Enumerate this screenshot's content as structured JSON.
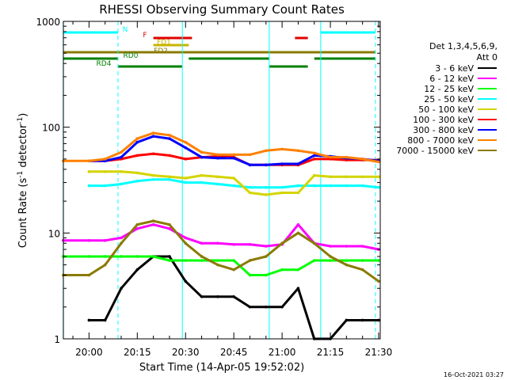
{
  "chart_data": {
    "type": "line",
    "title": "RHESSI Observing Summary Count Rates",
    "xlabel": "Start Time (14-Apr-05 19:52:02)",
    "ylabel_main": "Count Rate (s",
    "ylabel_sup1": "-1",
    "ylabel_mid": " detector",
    "ylabel_sup2": "-1",
    "ylabel_end": ")",
    "yscale": "log",
    "xlim": [
      "19:52:02",
      "21:30:30"
    ],
    "ylim": [
      1,
      1000
    ],
    "x_ticks": [
      "20:00",
      "20:15",
      "20:30",
      "20:45",
      "21:00",
      "21:15",
      "21:30"
    ],
    "y_ticks": [
      {
        "value": 1,
        "label": "1"
      },
      {
        "value": 10,
        "label": "10"
      },
      {
        "value": 100,
        "label": "100"
      },
      {
        "value": 1000,
        "label": "1000"
      }
    ],
    "legend": {
      "position": "right",
      "header1": "Det 1,3,4,5,6,9,",
      "header2": "Att 0",
      "entries": [
        {
          "label": "3 - 6 keV",
          "color": "#000000"
        },
        {
          "label": "6 - 12 keV",
          "color": "#ff00ff"
        },
        {
          "label": "12 - 25 keV",
          "color": "#00ff00"
        },
        {
          "label": "25 - 50 keV",
          "color": "#00ffff"
        },
        {
          "label": "50 - 100 keV",
          "color": "#d4d400"
        },
        {
          "label": "100 - 300 keV",
          "color": "#ff0000"
        },
        {
          "label": "300 - 800 keV",
          "color": "#0000ff"
        },
        {
          "label": "800 - 7000 keV",
          "color": "#ff8000"
        },
        {
          "label": "7000 - 15000 keV",
          "color": "#8a7a00"
        }
      ]
    },
    "time_grid": [
      "19:52",
      "20:00",
      "20:05",
      "20:10",
      "20:15",
      "20:20",
      "20:25",
      "20:30",
      "20:35",
      "20:40",
      "20:45",
      "20:50",
      "20:55",
      "21:00",
      "21:05",
      "21:10",
      "21:15",
      "21:20",
      "21:25",
      "21:30"
    ],
    "series": [
      {
        "name": "3 - 6 keV",
        "color": "#000000",
        "values": [
          null,
          1.5,
          1.5,
          3.0,
          4.5,
          6.0,
          6.0,
          3.5,
          2.5,
          2.5,
          2.5,
          2.0,
          2.0,
          2.0,
          3.0,
          1.0,
          1.0,
          1.5,
          1.5,
          1.5
        ]
      },
      {
        "name": "6 - 12 keV",
        "color": "#ff00ff",
        "values": [
          8.5,
          8.5,
          8.5,
          9.0,
          11.0,
          12.0,
          11.0,
          9.0,
          8.0,
          8.0,
          7.8,
          7.8,
          7.5,
          7.8,
          12.0,
          8.0,
          7.5,
          7.5,
          7.5,
          7.0
        ]
      },
      {
        "name": "12 - 25 keV",
        "color": "#00ff00",
        "values": [
          6.0,
          6.0,
          6.0,
          6.0,
          6.0,
          6.0,
          5.5,
          5.5,
          5.5,
          5.5,
          5.5,
          4.0,
          4.0,
          4.5,
          4.5,
          5.5,
          5.5,
          5.5,
          5.5,
          5.5
        ]
      },
      {
        "name": "25 - 50 keV",
        "color": "#00ffff",
        "values": [
          null,
          28,
          28,
          29,
          31,
          32,
          32,
          30,
          30,
          29,
          28,
          27,
          27,
          27,
          28,
          28,
          28,
          28,
          28,
          27
        ]
      },
      {
        "name": "50 - 100 keV",
        "color": "#d4d400",
        "values": [
          null,
          38,
          38,
          38,
          37,
          35,
          34,
          33,
          35,
          34,
          33,
          24,
          23,
          24,
          24,
          35,
          34,
          34,
          34,
          34
        ]
      },
      {
        "name": "100 - 300 keV",
        "color": "#ff0000",
        "values": [
          null,
          48,
          48,
          50,
          54,
          56,
          54,
          50,
          52,
          53,
          52,
          44,
          44,
          44,
          44,
          50,
          50,
          49,
          49,
          49
        ]
      },
      {
        "name": "300 - 800 keV",
        "color": "#0000ff",
        "values": [
          null,
          48,
          48,
          52,
          72,
          82,
          78,
          64,
          52,
          51,
          51,
          44,
          44,
          45,
          45,
          54,
          53,
          51,
          50,
          48
        ]
      },
      {
        "name": "800 - 7000 keV",
        "color": "#ff8000",
        "values": [
          48,
          48,
          50,
          58,
          78,
          88,
          84,
          72,
          58,
          55,
          55,
          55,
          60,
          62,
          60,
          57,
          52,
          52,
          50,
          47
        ]
      },
      {
        "name": "7000 - 15000 keV",
        "color": "#8a7a00",
        "values": [
          4.0,
          4.0,
          5.0,
          8.0,
          12.0,
          13.0,
          12.0,
          8.0,
          6.0,
          5.0,
          4.5,
          5.5,
          6.0,
          8.0,
          10.0,
          8.0,
          6.0,
          5.0,
          4.5,
          3.5
        ]
      }
    ],
    "flag_bars": [
      {
        "name": "N",
        "color": "#00ffff",
        "segments": [
          [
            "19:52",
            "20:09"
          ],
          [
            "21:12",
            "21:29"
          ]
        ]
      },
      {
        "name": "F",
        "color": "#e00000",
        "segments": [
          [
            "20:20",
            "20:32"
          ],
          [
            "21:04",
            "21:08"
          ]
        ]
      },
      {
        "name": "FD1",
        "color": "#c8b400",
        "segments": [
          [
            "20:20",
            "20:31"
          ]
        ]
      },
      {
        "name": "FD2",
        "color": "#8a7a00",
        "segments": [
          [
            "19:52",
            "21:29"
          ]
        ]
      },
      {
        "name": "RD0",
        "color": "#008000",
        "segments": [
          [
            "19:52",
            "20:09"
          ],
          [
            "20:31",
            "20:56"
          ],
          [
            "21:10",
            "21:29"
          ]
        ]
      },
      {
        "name": "RD4",
        "color": "#008000",
        "segments": [
          [
            "20:09",
            "20:29"
          ],
          [
            "20:56",
            "21:08"
          ]
        ]
      }
    ],
    "cyan_verticals": [
      {
        "time": "19:52",
        "style": "solid"
      },
      {
        "time": "20:09",
        "style": "dashed"
      },
      {
        "time": "20:29",
        "style": "solid"
      },
      {
        "time": "20:56",
        "style": "solid"
      },
      {
        "time": "21:12",
        "style": "solid"
      },
      {
        "time": "21:29",
        "style": "dashed"
      }
    ],
    "footer_date": "16-Oct-2021 03:27"
  }
}
